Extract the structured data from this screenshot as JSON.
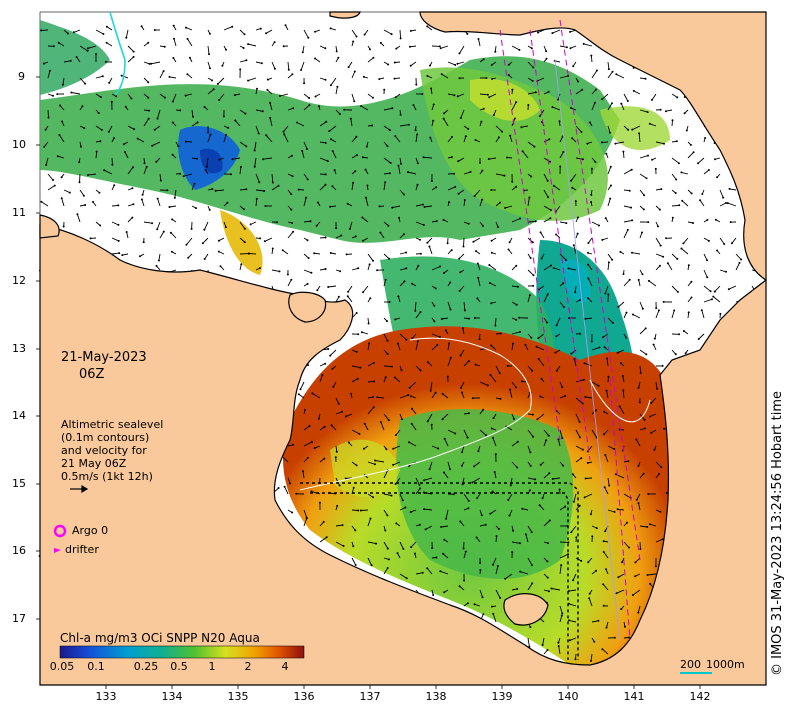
{
  "date": "21-May-2023",
  "hour": "06Z",
  "legend": {
    "line1": "Altimetric sealevel",
    "line2": "(0.1m contours)",
    "line3": "and velocity for",
    "line4": "21 May 06Z",
    "line5": "0.5m/s (1kt 12h)",
    "argo": "Argo 0",
    "drifter": "drifter"
  },
  "colorbar": {
    "title": "Chl-a mg/m3 OCi SNPP N20 Aqua",
    "ticks": [
      "0.05",
      "0.1",
      "0.25",
      "0.5",
      "1",
      "2",
      "4"
    ]
  },
  "lat_ticks": [
    "9",
    "10",
    "11",
    "12",
    "13",
    "14",
    "15",
    "16",
    "17"
  ],
  "lon_ticks": [
    "133",
    "134",
    "135",
    "136",
    "137",
    "138",
    "139",
    "140",
    "141",
    "142"
  ],
  "scale": {
    "a": "200",
    "b": "1000m"
  },
  "credit": "© IMOS 31-May-2023 13:24:56 Hobart time",
  "colors": {
    "land": "#f9c89b",
    "arrow": "#000000",
    "argo": "#ff00ff",
    "scale_line": "#00c8c8"
  }
}
